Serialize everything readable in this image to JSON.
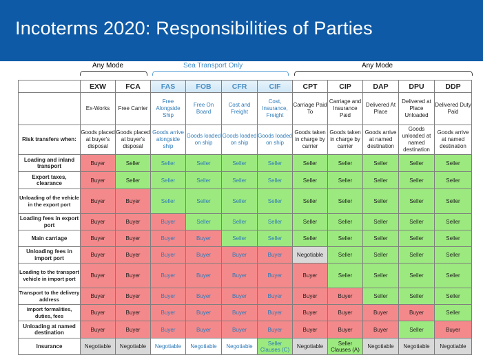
{
  "title": "Incoterms 2020: Responsibilities of Parties",
  "groups": {
    "any_mode_left": "Any Mode",
    "sea": "Sea Transport Only",
    "any_mode_right": "Any Mode"
  },
  "colors": {
    "banner": "#0e5aa6",
    "buyer": "#f4898b",
    "seller": "#9cea7f",
    "negotiable": "#d9d9d9",
    "sea_text": "#2e7ab8"
  },
  "terms": [
    {
      "code": "EXW",
      "name": "Ex-Works",
      "risk": "Goods placed at buyer's disposal",
      "sea": false
    },
    {
      "code": "FCA",
      "name": "Free Carrier",
      "risk": "Goods placed at buyer's disposal",
      "sea": false
    },
    {
      "code": "FAS",
      "name": "Free Alongside Ship",
      "risk": "Goods arrive alongside ship",
      "sea": true
    },
    {
      "code": "FOB",
      "name": "Free On Board",
      "risk": "Goods loaded on ship",
      "sea": true
    },
    {
      "code": "CFR",
      "name": "Cost and Freight",
      "risk": "Goods loaded on ship",
      "sea": true
    },
    {
      "code": "CIF",
      "name": "Cost, Insurance, Freight",
      "risk": "Goods loaded on ship",
      "sea": true
    },
    {
      "code": "CPT",
      "name": "Carriage Paid To",
      "risk": "Goods taken in charge by carrier",
      "sea": false
    },
    {
      "code": "CIP",
      "name": "Carriage and Insurance Paid",
      "risk": "Goods taken in charge by carrier",
      "sea": false
    },
    {
      "code": "DAP",
      "name": "Delivered At Place",
      "risk": "Goods arrive at named destination",
      "sea": false
    },
    {
      "code": "DPU",
      "name": "Delivered at Place Unloaded",
      "risk": "Goods unloaded at named destination",
      "sea": false
    },
    {
      "code": "DDP",
      "name": "Delivered Duty Paid",
      "risk": "Goods arrive at named destination",
      "sea": false
    }
  ],
  "risk_label": "Risk transfers when:",
  "rows": [
    {
      "label": "Loading and inland transport",
      "cells": [
        "Buyer",
        "Seller",
        "Seller",
        "Seller",
        "Seller",
        "Seller",
        "Seller",
        "Seller",
        "Seller",
        "Seller",
        "Seller"
      ]
    },
    {
      "label": "Export taxes, clearance",
      "cells": [
        "Buyer",
        "Seller",
        "Seller",
        "Seller",
        "Seller",
        "Seller",
        "Seller",
        "Seller",
        "Seller",
        "Seller",
        "Seller"
      ]
    },
    {
      "label": "Unloading of the vehicle in the export port",
      "cells": [
        "Buyer",
        "Buyer",
        "Seller",
        "Seller",
        "Seller",
        "Seller",
        "Seller",
        "Seller",
        "Seller",
        "Seller",
        "Seller"
      ]
    },
    {
      "label": "Loading fees in export port",
      "cells": [
        "Buyer",
        "Buyer",
        "Buyer",
        "Seller",
        "Seller",
        "Seller",
        "Seller",
        "Seller",
        "Seller",
        "Seller",
        "Seller"
      ]
    },
    {
      "label": "Main carriage",
      "cells": [
        "Buyer",
        "Buyer",
        "Buyer",
        "Buyer",
        "Seller",
        "Seller",
        "Seller",
        "Seller",
        "Seller",
        "Seller",
        "Seller"
      ]
    },
    {
      "label": "Unloading fees in import port",
      "cells": [
        "Buyer",
        "Buyer",
        "Buyer",
        "Buyer",
        "Buyer",
        "Buyer",
        "Negotiable",
        "Seller",
        "Seller",
        "Seller",
        "Seller"
      ]
    },
    {
      "label": "Loading to the transport vehicle in import port",
      "cells": [
        "Buyer",
        "Buyer",
        "Buyer",
        "Buyer",
        "Buyer",
        "Buyer",
        "Buyer",
        "Seller",
        "Seller",
        "Seller",
        "Seller"
      ]
    },
    {
      "label": "Transport to the delivery address",
      "cells": [
        "Buyer",
        "Buyer",
        "Buyer",
        "Buyer",
        "Buyer",
        "Buyer",
        "Buyer",
        "Buyer",
        "Seller",
        "Seller",
        "Seller"
      ]
    },
    {
      "label": "Import formalities, duties, fees",
      "cells": [
        "Buyer",
        "Buyer",
        "Buyer",
        "Buyer",
        "Buyer",
        "Buyer",
        "Buyer",
        "Buyer",
        "Buyer",
        "Buyer",
        "Seller"
      ]
    },
    {
      "label": "Unloading at named destination",
      "cells": [
        "Buyer",
        "Buyer",
        "Buyer",
        "Buyer",
        "Buyer",
        "Buyer",
        "Buyer",
        "Buyer",
        "Buyer",
        "Seller",
        "Buyer"
      ]
    },
    {
      "label": "Insurance",
      "cells": [
        "Negotiable",
        "Negotiable",
        "Negotiable",
        "Negotiable",
        "Negotiable",
        "Seller Clauses (C)",
        "Negotiable",
        "Seller Clauses (A)",
        "Negotiable",
        "Negotiable",
        "Negotiable"
      ]
    }
  ]
}
